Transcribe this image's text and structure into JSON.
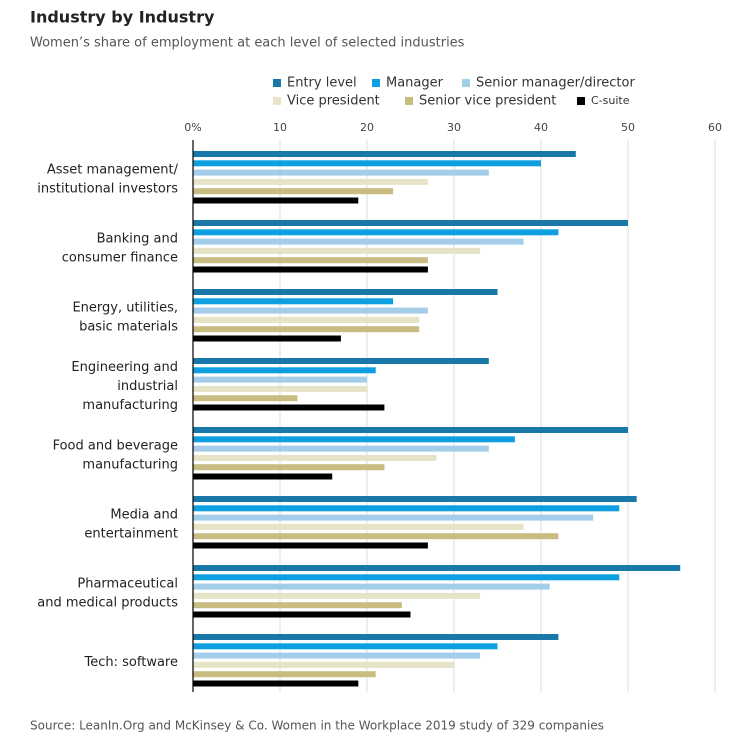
{
  "chart_data": {
    "type": "bar",
    "orientation": "horizontal",
    "title": "Industry by Industry",
    "subtitle": "Women’s share of employment at each level of selected industries",
    "source": "Source: LeanIn.Org and McKinsey & Co. Women in the Workplace 2019 study of 329 companies",
    "categories": [
      "Asset management/\ninstitutional investors",
      "Banking and\nconsumer finance",
      "Energy, utilities,\nbasic materials",
      "Engineering and\nindustrial\nmanufacturing",
      "Food and beverage\nmanufacturing",
      "Media and\nentertainment",
      "Pharmaceutical\nand medical products",
      "Tech: software"
    ],
    "series": [
      {
        "name": "Entry level",
        "color": "#1a78a8",
        "values": [
          44,
          50,
          35,
          34,
          50,
          51,
          56,
          42
        ]
      },
      {
        "name": "Manager",
        "color": "#0d9fdf",
        "values": [
          40,
          42,
          23,
          21,
          37,
          49,
          49,
          35
        ]
      },
      {
        "name": "Senior manager/director",
        "color": "#a3cde9",
        "values": [
          34,
          38,
          27,
          20,
          34,
          46,
          41,
          33
        ]
      },
      {
        "name": "Vice president",
        "color": "#e7e3c6",
        "values": [
          27,
          33,
          26,
          20,
          28,
          38,
          33,
          30
        ]
      },
      {
        "name": "Senior vice president",
        "color": "#c8bc80",
        "values": [
          23,
          27,
          26,
          12,
          22,
          42,
          24,
          21
        ]
      },
      {
        "name": "C-suite",
        "color": "#000000",
        "values": [
          19,
          27,
          17,
          22,
          16,
          27,
          25,
          19
        ]
      }
    ],
    "xlim": [
      0,
      60
    ],
    "xticks": [
      {
        "value": 0,
        "label": "0%"
      },
      10,
      20,
      30,
      40,
      50,
      60
    ],
    "grid": true
  }
}
